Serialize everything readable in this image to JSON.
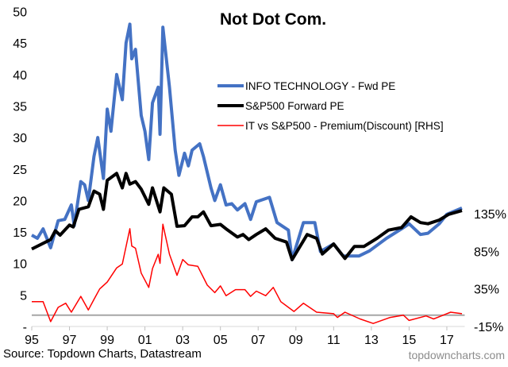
{
  "chart_data": {
    "type": "line",
    "title": "Not Dot Com.",
    "source": "Source: Topdown Charts, Datastream",
    "watermark": "topdowncharts.com",
    "x_ticks": [
      {
        "year": 1995,
        "label": "95"
      },
      {
        "year": 1997,
        "label": "97"
      },
      {
        "year": 1999,
        "label": "99"
      },
      {
        "year": 2001,
        "label": "01"
      },
      {
        "year": 2003,
        "label": "03"
      },
      {
        "year": 2005,
        "label": "05"
      },
      {
        "year": 2007,
        "label": "07"
      },
      {
        "year": 2009,
        "label": "09"
      },
      {
        "year": 2011,
        "label": "11"
      },
      {
        "year": 2013,
        "label": "13"
      },
      {
        "year": 2015,
        "label": "15"
      },
      {
        "year": 2017,
        "label": "17"
      }
    ],
    "xlim": [
      1995,
      2018.2
    ],
    "left_axis": {
      "ylim": [
        0,
        50
      ],
      "ticks": [
        {
          "v": 50,
          "label": "50"
        },
        {
          "v": 45,
          "label": "45"
        },
        {
          "v": 40,
          "label": "40"
        },
        {
          "v": 35,
          "label": "35"
        },
        {
          "v": 30,
          "label": "30"
        },
        {
          "v": 25,
          "label": "25"
        },
        {
          "v": 20,
          "label": "20"
        },
        {
          "v": 15,
          "label": "15"
        },
        {
          "v": 10,
          "label": "10"
        },
        {
          "v": 5,
          "label": "5"
        },
        {
          "v": 0,
          "label": "-"
        }
      ]
    },
    "right_axis": {
      "ylim": [
        -15,
        135
      ],
      "ticks": [
        {
          "v": 135,
          "label": "135%"
        },
        {
          "v": 85,
          "label": "85%"
        },
        {
          "v": 35,
          "label": "35%"
        },
        {
          "v": -15,
          "label": "-15%"
        }
      ],
      "zero_line": true
    },
    "grid": false,
    "legend_placement": "top-right",
    "series": [
      {
        "name": "INFO TECHNOLOGY - Fwd PE",
        "axis": "left",
        "color": "#4472C4",
        "x": [
          1995.0,
          1995.3,
          1995.6,
          1996.0,
          1996.4,
          1996.75,
          1997.1,
          1997.25,
          1997.6,
          1997.8,
          1998.0,
          1998.3,
          1998.5,
          1998.8,
          1999.0,
          1999.2,
          1999.5,
          1999.8,
          2000.0,
          2000.2,
          2000.3,
          2000.5,
          2000.8,
          2001.0,
          2001.2,
          2001.4,
          2001.7,
          2001.8,
          2001.95,
          2002.3,
          2002.6,
          2002.8,
          2003.1,
          2003.3,
          2003.5,
          2003.9,
          2004.1,
          2004.5,
          2004.7,
          2005.0,
          2005.3,
          2005.6,
          2005.9,
          2006.3,
          2006.6,
          2006.9,
          2007.6,
          2008.0,
          2008.6,
          2008.8,
          2009.4,
          2010.0,
          2010.3,
          2011.0,
          2011.5,
          2012.35,
          2012.9,
          2013.8,
          2014.6,
          2015.0,
          2015.6,
          2016.0,
          2016.6,
          2017.0,
          2017.8
        ],
        "y": [
          14.5,
          14.0,
          15.5,
          12.5,
          16.8,
          17.0,
          19.3,
          16.0,
          23.0,
          22.5,
          20.0,
          27.0,
          30.0,
          23.5,
          34.5,
          31.0,
          40.0,
          36.0,
          45.0,
          48.0,
          42.5,
          44.0,
          33.5,
          31.0,
          26.5,
          35.5,
          38.0,
          30.5,
          47.5,
          38.0,
          28.0,
          24.0,
          27.5,
          25.5,
          28.0,
          29.0,
          27.0,
          22.0,
          20.0,
          22.5,
          19.3,
          19.5,
          18.5,
          19.5,
          17.0,
          19.8,
          20.5,
          16.5,
          15.3,
          10.6,
          16.5,
          16.5,
          11.9,
          13.1,
          11.2,
          11.2,
          12.0,
          14.0,
          15.5,
          16.3,
          14.6,
          14.8,
          16.3,
          17.8,
          18.8
        ]
      },
      {
        "name": "S&P500 Forward PE",
        "axis": "left",
        "color": "#000000",
        "x": [
          1995.0,
          1996.0,
          1996.25,
          1996.5,
          1997.0,
          1997.2,
          1997.5,
          1998.0,
          1998.3,
          1998.6,
          1998.8,
          1999.0,
          1999.5,
          1999.8,
          2000.0,
          2000.2,
          2000.5,
          2000.8,
          2001.2,
          2001.4,
          2001.8,
          2002.0,
          2002.4,
          2002.7,
          2003.1,
          2003.5,
          2003.8,
          2004.1,
          2004.5,
          2005.0,
          2005.3,
          2005.9,
          2006.2,
          2006.5,
          2006.9,
          2007.4,
          2007.9,
          2008.5,
          2008.8,
          2009.6,
          2010.1,
          2010.4,
          2011.0,
          2011.6,
          2012.1,
          2012.6,
          2013.3,
          2013.9,
          2014.6,
          2015.1,
          2015.6,
          2016.0,
          2016.6,
          2017.1,
          2017.8
        ],
        "y": [
          12.3,
          13.8,
          15.2,
          14.5,
          16.1,
          15.8,
          18.6,
          19.0,
          21.5,
          21.0,
          18.6,
          23.2,
          24.3,
          22.0,
          24.3,
          22.6,
          23.0,
          21.8,
          19.4,
          22.0,
          18.2,
          22.0,
          21.0,
          15.9,
          16.0,
          17.4,
          17.4,
          18.2,
          16.0,
          16.2,
          15.5,
          14.2,
          14.6,
          13.8,
          14.6,
          15.5,
          14.0,
          13.4,
          10.6,
          14.6,
          14.0,
          11.5,
          13.1,
          10.8,
          12.7,
          12.7,
          14.0,
          15.3,
          15.7,
          17.4,
          16.5,
          16.3,
          16.9,
          17.8,
          18.4
        ]
      },
      {
        "name": "IT vs S&P500 - Premium(Discount) [RHS]",
        "axis": "right",
        "color": "#FF0000",
        "x": [
          1995.0,
          1995.6,
          1996.0,
          1996.4,
          1996.8,
          1997.1,
          1997.6,
          1998.0,
          1998.3,
          1998.6,
          1999.0,
          1999.5,
          1999.8,
          2000.2,
          2000.3,
          2000.5,
          2000.8,
          2001.2,
          2001.4,
          2001.7,
          2001.8,
          2001.95,
          2002.3,
          2002.7,
          2003.0,
          2003.3,
          2003.8,
          2004.3,
          2004.7,
          2005.0,
          2005.3,
          2005.8,
          2006.3,
          2006.6,
          2006.9,
          2007.4,
          2007.8,
          2008.2,
          2008.9,
          2009.4,
          2010.1,
          2011.0,
          2011.2,
          2011.6,
          2012.4,
          2013.1,
          2014.0,
          2014.7,
          2015.0,
          2015.9,
          2016.3,
          2016.8,
          2017.2,
          2017.8
        ],
        "y": [
          18,
          18,
          -8.6,
          10.5,
          16,
          4,
          25,
          7,
          21,
          35,
          44,
          63,
          68,
          115,
          92,
          89,
          56,
          37,
          62,
          81,
          69,
          121,
          81,
          53,
          74,
          67,
          65,
          40,
          30,
          39,
          26,
          34,
          34,
          25,
          32,
          26,
          37,
          18,
          5,
          16,
          4,
          2,
          -3,
          4,
          -5,
          -11,
          -3,
          0,
          -7,
          -1,
          -5,
          0,
          4,
          2
        ]
      }
    ]
  }
}
